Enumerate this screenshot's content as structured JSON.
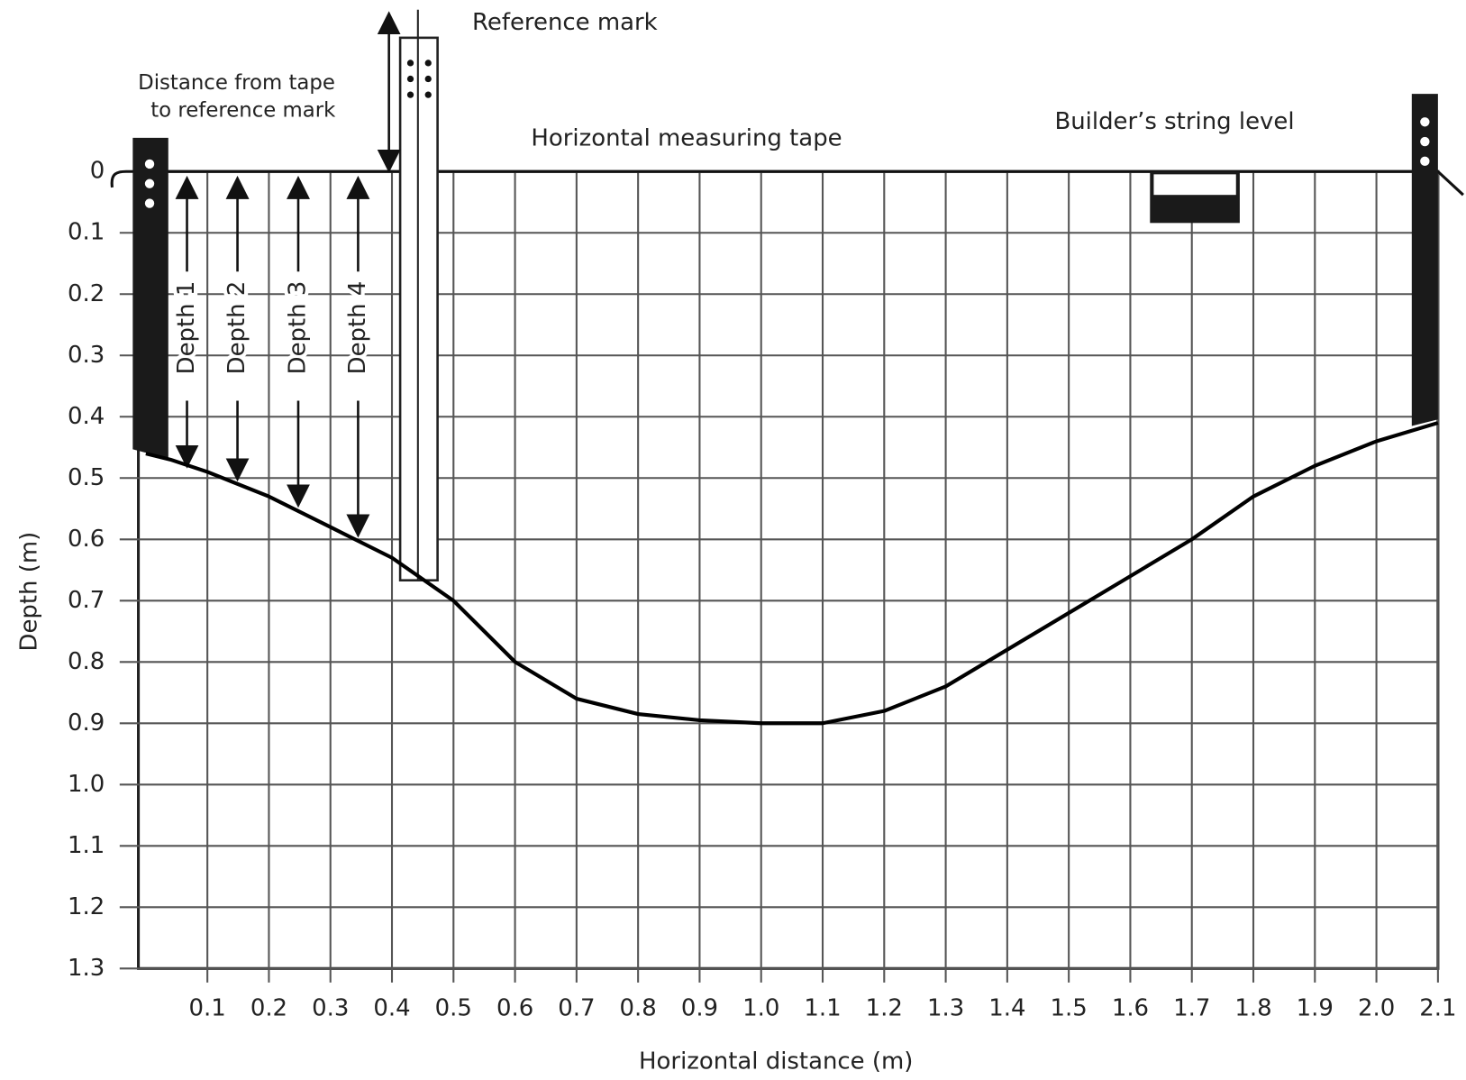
{
  "chart_data": {
    "type": "line",
    "annotations": [
      "Reference mark",
      "Distance from tape",
      "to reference mark",
      "Horizontal measuring tape",
      "Builder’s string level",
      "Depth 1",
      "Depth 2",
      "Depth 3",
      "Depth 4"
    ],
    "xlabel": "Horizontal distance (m)",
    "ylabel": "Depth (m)",
    "x": [
      0,
      0.04,
      0.1,
      0.2,
      0.3,
      0.4,
      0.5,
      0.6,
      0.7,
      0.8,
      0.9,
      1.0,
      1.1,
      1.2,
      1.3,
      1.4,
      1.5,
      1.6,
      1.7,
      1.8,
      1.9,
      2.0,
      2.1
    ],
    "series": [
      {
        "color": "#000000",
        "values": [
          0.46,
          0.47,
          0.49,
          0.53,
          0.58,
          0.63,
          0.7,
          0.8,
          0.86,
          0.885,
          0.895,
          0.9,
          0.9,
          0.88,
          0.84,
          0.78,
          0.72,
          0.66,
          0.6,
          0.53,
          0.48,
          0.44,
          0.41
        ]
      }
    ],
    "xlim": [
      0,
      2.1
    ],
    "xticks": [
      0.1,
      0.2,
      0.3,
      0.4,
      0.5,
      0.6,
      0.7,
      0.8,
      0.9,
      {
        "value": 1,
        "label": "1.0"
      },
      1.1,
      1.2,
      1.3,
      1.4,
      1.5,
      1.6,
      1.7,
      1.8,
      1.9,
      {
        "value": 2,
        "label": "2.0"
      },
      2.1
    ],
    "ylim": [
      0,
      1.3
    ],
    "yticks": [
      0,
      0.1,
      0.2,
      0.3,
      0.4,
      0.5,
      0.6,
      0.7,
      0.8,
      0.9,
      {
        "value": 1,
        "label": "1.0"
      },
      1.1,
      1.2,
      1.3
    ],
    "y_inverted": true,
    "grid": true
  }
}
